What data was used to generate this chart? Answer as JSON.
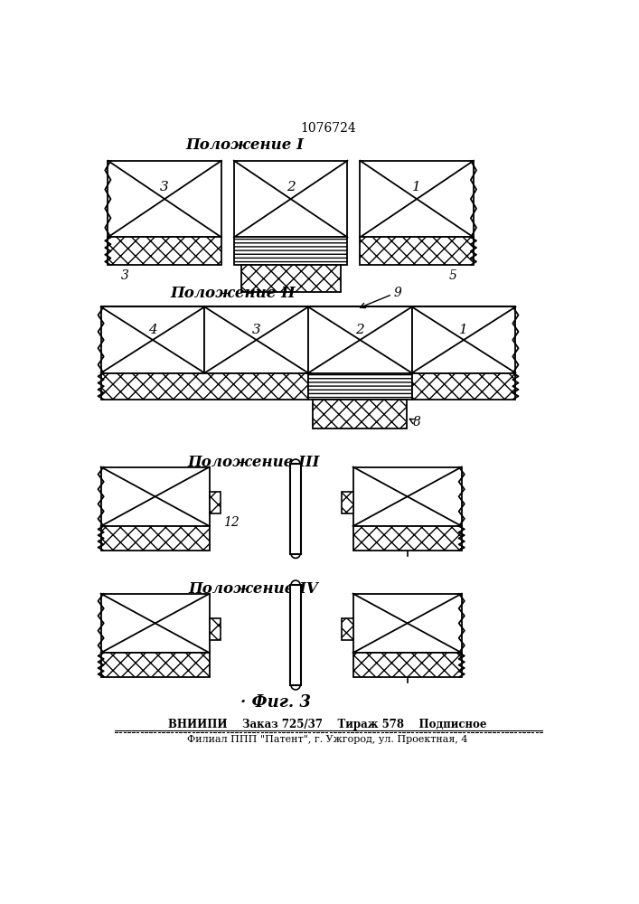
{
  "title": "1076724",
  "fig_label": "Фиг. 3",
  "pos1_label": "Положение I",
  "pos2_label": "Положение II",
  "pos3_label": "Положение III",
  "pos4_label": "Положение IV",
  "footer1": "ВНИИПИ    Заказ 725/37    Тираж 578    Подписное",
  "footer2": "Филиал ППП \"Патент\", г. Ужгород, ул. Проектная, 4",
  "bg_color": "#ffffff",
  "line_color": "#000000"
}
